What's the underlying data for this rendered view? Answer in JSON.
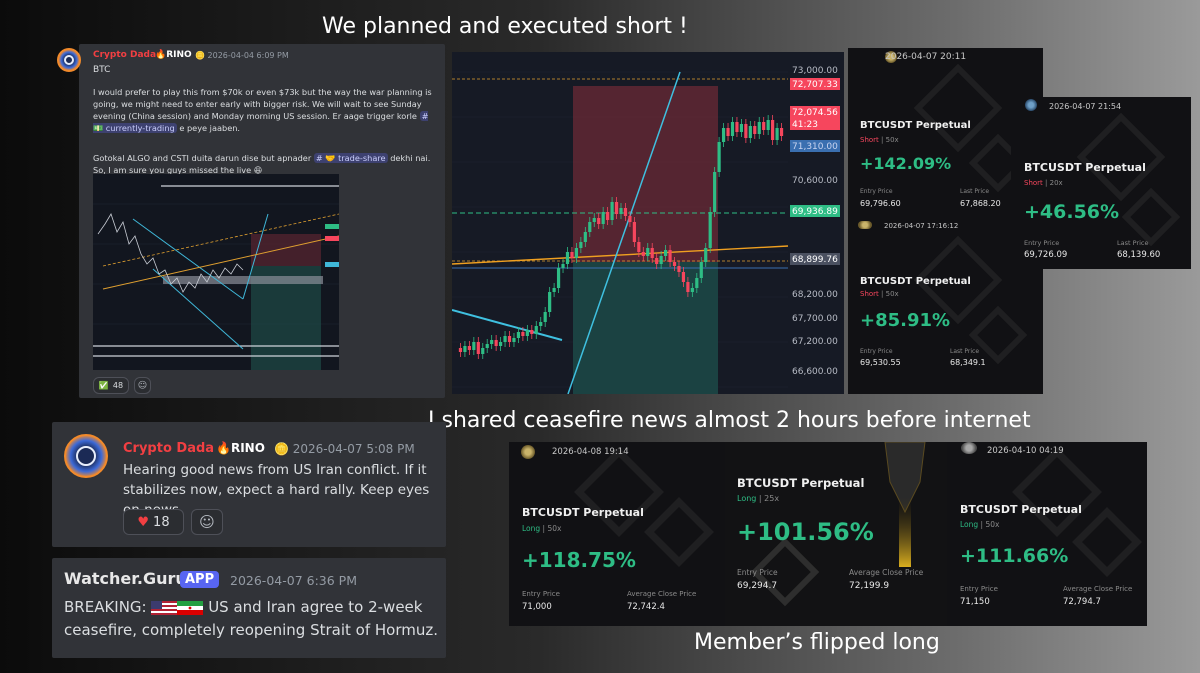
{
  "captions": {
    "top": "We planned and executed short !",
    "middle": "I shared ceasefire news almost 2 hours before internet",
    "bottom": "Member’s flipped long"
  },
  "discord_post_1": {
    "username": "Crypto Dada",
    "badge": "RINO",
    "timestamp": "2026-04-04 6:09 PM",
    "line_title": "BTC",
    "para1_a": "I would prefer to play this from $70k or even $73k but the way the war planning is going, we might need to enter early with bigger risk. We will wait to see Sunday evening (China session) and Monday morning US session. Er aage trigger korle",
    "channel1": "# 💵 currently-trading",
    "para1_b": "e peye jaaben.",
    "para2_a": "Gotokal ALGO and CSTI duita darun dise but apnader",
    "channel2": "# 🤝 trade-share",
    "para2_b": "dekhi nai. So, I am sure you guys missed the live",
    "reaction_emoji": "✅",
    "reaction_count": "48"
  },
  "big_chart": {
    "price_labels": [
      "73,000.00",
      "72,707.33",
      "72,074.56",
      "41:23",
      "71,310.00",
      "70,600.00",
      "69,936.89",
      "68,899.76",
      "68,200.00",
      "67,700.00",
      "67,200.00",
      "66,600.00"
    ]
  },
  "cards_top": [
    {
      "date": "2026-04-07 20:11",
      "title": "BTCUSDT Perpetual",
      "side": "Short",
      "leverage": "50x",
      "pnl": "+142.09%",
      "entry_label": "Entry Price",
      "entry": "69,796.60",
      "last_label": "Last Price",
      "last": "67,868.20"
    },
    {
      "date": "2026-04-07 17:16:12",
      "title": "BTCUSDT Perpetual",
      "side": "Short",
      "leverage": "50x",
      "pnl": "+85.91%",
      "entry_label": "Entry Price",
      "entry": "69,530.55",
      "last_label": "Last Price",
      "last": "68,349.1"
    },
    {
      "date": "2026-04-07 21:54",
      "title": "BTCUSDT Perpetual",
      "side": "Short",
      "leverage": "20x",
      "pnl": "+46.56%",
      "entry_label": "Entry Price",
      "entry": "69,726.09",
      "last_label": "Last Price",
      "last": "68,139.60"
    }
  ],
  "cards_bottom": [
    {
      "date": "2026-04-08 19:14",
      "title": "BTCUSDT Perpetual",
      "side": "Long",
      "leverage": "50x",
      "pnl": "+118.75%",
      "entry_label": "Entry Price",
      "entry": "71,000",
      "last_label": "Average Close Price",
      "last": "72,742.4"
    },
    {
      "date": "",
      "title": "BTCUSDT Perpetual",
      "side": "Long",
      "leverage": "25x",
      "pnl": "+101.56%",
      "entry_label": "Entry Price",
      "entry": "69,294.7",
      "last_label": "Average Close Price",
      "last": "72,199.9"
    },
    {
      "date": "2026-04-10 04:19",
      "title": "BTCUSDT Perpetual",
      "side": "Long",
      "leverage": "50x",
      "pnl": "+111.66%",
      "entry_label": "Entry Price",
      "entry": "71,150",
      "last_label": "Average Close Price",
      "last": "72,794.7"
    }
  ],
  "discord_post_2": {
    "username": "Crypto Dada",
    "badge": "RINO",
    "timestamp": "2026-04-07 5:08 PM",
    "message": "Hearing good news from US Iran conflict. If it stabilizes now, expect a hard rally. Keep eyes on news",
    "reaction_emoji": "❤️",
    "reaction_count": "18"
  },
  "discord_post_3": {
    "username": "Watcher.Guru",
    "badge": "APP",
    "timestamp": "2026-04-07 6:36 PM",
    "prefix": "BREAKING:",
    "message": "US and Iran agree to 2-week ceasefire, completely reopening Strait of Hormuz."
  },
  "colors": {
    "profit_green": "#2ebd85",
    "short_red": "#f6465d",
    "discord_bg": "#313338",
    "username_red": "#f23f42",
    "chart_bg": "#161a25"
  }
}
